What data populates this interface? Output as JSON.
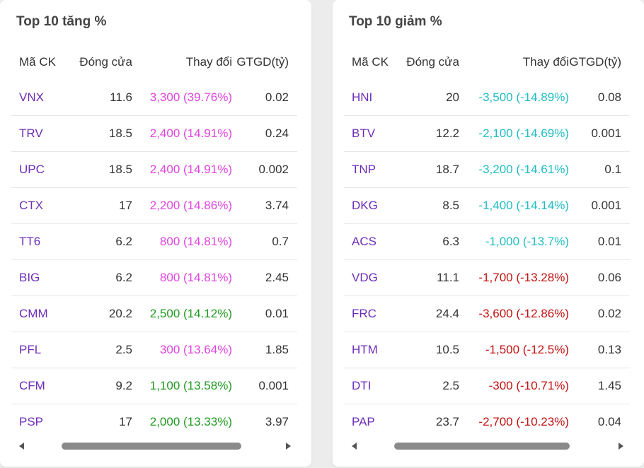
{
  "headers": {
    "symbol": "Mã CK",
    "close": "Đóng cửa",
    "change": "Thay đổi",
    "value": "GTGD(tỷ)"
  },
  "colors": {
    "symbol": "#6d2db8",
    "ceiling": "#e044e0",
    "up": "#1f9a1f",
    "down": "#c41010",
    "floor": "#1fbcc4"
  },
  "gainers": {
    "title": "Top 10 tăng %",
    "rows": [
      {
        "symbol": "VNX",
        "close": "11.6",
        "change": "3,300 (39.76%)",
        "value": "0.02",
        "status": "ceiling"
      },
      {
        "symbol": "TRV",
        "close": "18.5",
        "change": "2,400 (14.91%)",
        "value": "0.24",
        "status": "ceiling"
      },
      {
        "symbol": "UPC",
        "close": "18.5",
        "change": "2,400 (14.91%)",
        "value": "0.002",
        "status": "ceiling"
      },
      {
        "symbol": "CTX",
        "close": "17",
        "change": "2,200 (14.86%)",
        "value": "3.74",
        "status": "ceiling"
      },
      {
        "symbol": "TT6",
        "close": "6.2",
        "change": "800 (14.81%)",
        "value": "0.7",
        "status": "ceiling"
      },
      {
        "symbol": "BIG",
        "close": "6.2",
        "change": "800 (14.81%)",
        "value": "2.45",
        "status": "ceiling"
      },
      {
        "symbol": "CMM",
        "close": "20.2",
        "change": "2,500 (14.12%)",
        "value": "0.01",
        "status": "up"
      },
      {
        "symbol": "PFL",
        "close": "2.5",
        "change": "300 (13.64%)",
        "value": "1.85",
        "status": "ceiling"
      },
      {
        "symbol": "CFM",
        "close": "9.2",
        "change": "1,100 (13.58%)",
        "value": "0.001",
        "status": "up"
      },
      {
        "symbol": "PSP",
        "close": "17",
        "change": "2,000 (13.33%)",
        "value": "3.97",
        "status": "up"
      }
    ]
  },
  "losers": {
    "title": "Top 10 giảm %",
    "rows": [
      {
        "symbol": "HNI",
        "close": "20",
        "change": "-3,500 (-14.89%)",
        "value": "0.08",
        "status": "floor"
      },
      {
        "symbol": "BTV",
        "close": "12.2",
        "change": "-2,100 (-14.69%)",
        "value": "0.001",
        "status": "floor"
      },
      {
        "symbol": "TNP",
        "close": "18.7",
        "change": "-3,200 (-14.61%)",
        "value": "0.1",
        "status": "floor"
      },
      {
        "symbol": "DKG",
        "close": "8.5",
        "change": "-1,400 (-14.14%)",
        "value": "0.001",
        "status": "floor"
      },
      {
        "symbol": "ACS",
        "close": "6.3",
        "change": "-1,000 (-13.7%)",
        "value": "0.01",
        "status": "floor"
      },
      {
        "symbol": "VDG",
        "close": "11.1",
        "change": "-1,700 (-13.28%)",
        "value": "0.06",
        "status": "down"
      },
      {
        "symbol": "FRC",
        "close": "24.4",
        "change": "-3,600 (-12.86%)",
        "value": "0.02",
        "status": "down"
      },
      {
        "symbol": "HTM",
        "close": "10.5",
        "change": "-1,500 (-12.5%)",
        "value": "0.13",
        "status": "down"
      },
      {
        "symbol": "DTI",
        "close": "2.5",
        "change": "-300 (-10.71%)",
        "value": "1.45",
        "status": "down"
      },
      {
        "symbol": "PAP",
        "close": "23.7",
        "change": "-2,700 (-10.23%)",
        "value": "0.04",
        "status": "down"
      }
    ]
  },
  "icons": {
    "scroll_left": "triangle-left-icon",
    "scroll_right": "triangle-right-icon"
  }
}
